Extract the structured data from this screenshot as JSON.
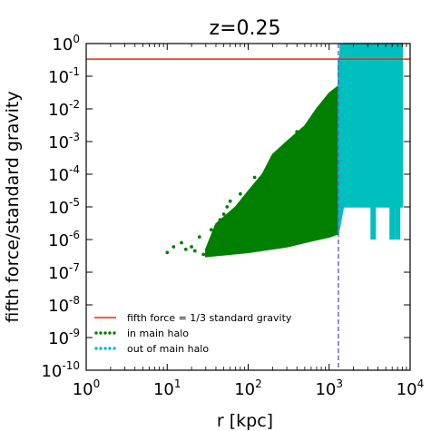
{
  "chart_data": {
    "type": "scatter",
    "title": "z=0.25",
    "xlabel": "r [kpc]",
    "ylabel": "fifth force/standard gravity",
    "x_scale": "log",
    "y_scale": "log",
    "xlim": [
      1,
      10000
    ],
    "ylim": [
      1e-10,
      1
    ],
    "x_ticks": [
      {
        "value": 1,
        "base": "10",
        "exp": "0"
      },
      {
        "value": 10,
        "base": "10",
        "exp": "1"
      },
      {
        "value": 100,
        "base": "10",
        "exp": "2"
      },
      {
        "value": 1000,
        "base": "10",
        "exp": "3"
      },
      {
        "value": 10000,
        "base": "10",
        "exp": "4"
      }
    ],
    "y_ticks": [
      {
        "value": 1e-10,
        "base": "10",
        "exp": "-10"
      },
      {
        "value": 1e-09,
        "base": "10",
        "exp": "-9"
      },
      {
        "value": 1e-08,
        "base": "10",
        "exp": "-8"
      },
      {
        "value": 1e-07,
        "base": "10",
        "exp": "-7"
      },
      {
        "value": 1e-06,
        "base": "10",
        "exp": "-6"
      },
      {
        "value": 1e-05,
        "base": "10",
        "exp": "-5"
      },
      {
        "value": 0.0001,
        "base": "10",
        "exp": "-4"
      },
      {
        "value": 0.001,
        "base": "10",
        "exp": "-3"
      },
      {
        "value": 0.01,
        "base": "10",
        "exp": "-2"
      },
      {
        "value": 0.1,
        "base": "10",
        "exp": "-1"
      },
      {
        "value": 1,
        "base": "10",
        "exp": "0"
      }
    ],
    "reference_lines": [
      {
        "name": "fifth force = 1/3 standard gravity",
        "orientation": "horizontal",
        "value": 0.3333,
        "color": "#ff2200"
      },
      {
        "orientation": "vertical",
        "value": 1300,
        "color": "#6a5acd",
        "style": "dashed"
      }
    ],
    "series": [
      {
        "name": "in main halo",
        "color": "#007f00",
        "region": {
          "lower_edge": [
            [
              30,
              3e-07
            ],
            [
              100,
              4e-07
            ],
            [
              300,
              6e-07
            ],
            [
              600,
              9e-07
            ],
            [
              1000,
              1.2e-06
            ],
            [
              1300,
              1.5e-06
            ]
          ],
          "upper_edge": [
            [
              30,
              5e-07
            ],
            [
              40,
              3e-06
            ],
            [
              70,
              1e-05
            ],
            [
              100,
              3e-05
            ],
            [
              150,
              0.0001
            ],
            [
              200,
              0.0004
            ],
            [
              300,
              0.001
            ],
            [
              500,
              0.003
            ],
            [
              700,
              0.01
            ],
            [
              1000,
              0.03
            ],
            [
              1300,
              0.05
            ]
          ]
        },
        "points": [
          [
            10,
            4e-07
          ],
          [
            12,
            6e-07
          ],
          [
            15,
            8e-07
          ],
          [
            17,
            5e-07
          ],
          [
            20,
            6e-07
          ],
          [
            22,
            4.5e-07
          ],
          [
            25,
            1.2e-06
          ],
          [
            28,
            3.5e-07
          ],
          [
            35,
            2e-06
          ],
          [
            40,
            2.5e-06
          ],
          [
            45,
            4e-06
          ],
          [
            50,
            6e-06
          ],
          [
            55,
            1e-05
          ],
          [
            60,
            1.5e-05
          ],
          [
            80,
            2.5e-05
          ],
          [
            120,
            8e-05
          ],
          [
            180,
            0.0002
          ],
          [
            250,
            0.0005
          ],
          [
            400,
            0.002
          ],
          [
            1100,
            0.03
          ]
        ]
      },
      {
        "name": "out of main halo",
        "color": "#00bfbf",
        "region": {
          "lower_edge": [
            [
              1300,
              1.5e-06
            ],
            [
              1500,
              1e-05
            ],
            [
              2000,
              1e-05
            ],
            [
              3000,
              1e-05
            ],
            [
              5000,
              1e-05
            ],
            [
              7000,
              1e-05
            ],
            [
              8000,
              1e-05
            ]
          ],
          "upper_edge": [
            [
              1300,
              0.3
            ],
            [
              1500,
              1
            ],
            [
              3000,
              1
            ],
            [
              5000,
              1
            ],
            [
              8000,
              1
            ]
          ]
        },
        "spikes": [
          {
            "x": 1450,
            "low": 0.0003
          },
          {
            "x": 1700,
            "low": 0.002
          },
          {
            "x": 2000,
            "low": 0.0001
          },
          {
            "x": 2400,
            "low": 1e-05
          },
          {
            "x": 3500,
            "low": 1e-06
          },
          {
            "x": 5000,
            "low": 1e-05
          },
          {
            "x": 6000,
            "low": 1e-06
          },
          {
            "x": 7000,
            "low": 1e-06
          }
        ]
      }
    ],
    "legend_location": "lower-left",
    "legend": [
      {
        "label": "fifth force = 1/3 standard gravity",
        "kind": "line",
        "color": "#ff2200"
      },
      {
        "label": "in main halo",
        "kind": "dots",
        "color": "#007f00"
      },
      {
        "label": "out of main halo",
        "kind": "dots",
        "color": "#00bfbf"
      }
    ]
  }
}
